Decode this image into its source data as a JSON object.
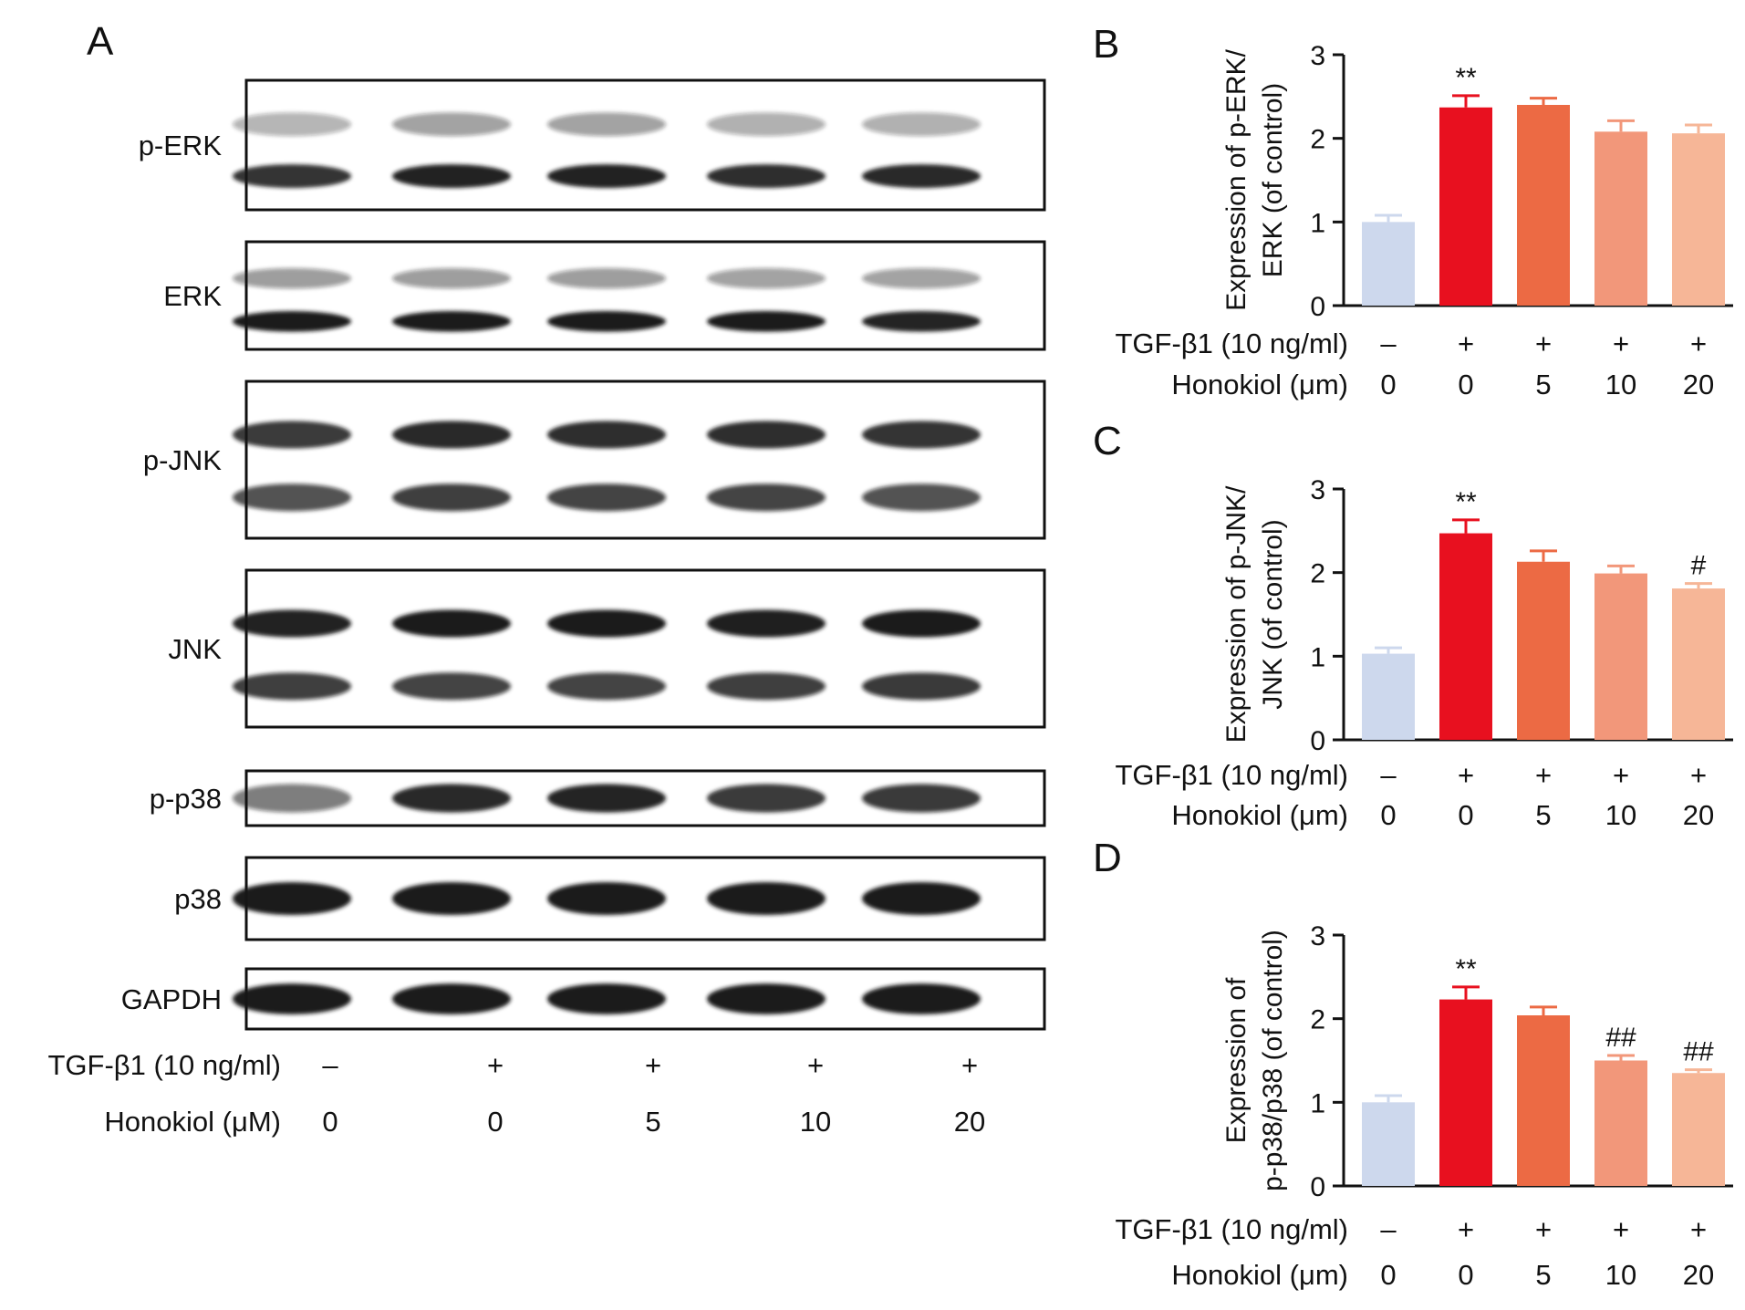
{
  "panel_letters": {
    "a": "A",
    "b": "B",
    "c": "C",
    "d": "D"
  },
  "blots": [
    {
      "label": "p-ERK",
      "rows": [
        {
          "intensity": [
            0.32,
            0.4,
            0.4,
            0.34,
            0.34
          ]
        },
        {
          "intensity": [
            0.88,
            0.95,
            0.95,
            0.9,
            0.92
          ]
        }
      ]
    },
    {
      "label": "ERK",
      "rows": [
        {
          "intensity": [
            0.42,
            0.42,
            0.42,
            0.4,
            0.4
          ]
        },
        {
          "intensity": [
            0.98,
            0.98,
            0.98,
            0.98,
            0.94
          ]
        }
      ]
    },
    {
      "label": "p-JNK",
      "rows": [
        {
          "intensity": [
            0.85,
            0.92,
            0.9,
            0.9,
            0.88
          ]
        },
        {
          "intensity": [
            0.72,
            0.8,
            0.78,
            0.78,
            0.72
          ]
        }
      ]
    },
    {
      "label": "JNK",
      "rows": [
        {
          "intensity": [
            0.95,
            0.98,
            0.98,
            0.96,
            0.98
          ]
        },
        {
          "intensity": [
            0.8,
            0.78,
            0.78,
            0.8,
            0.82
          ]
        }
      ]
    },
    {
      "label": "p-p38",
      "rows": [
        {
          "intensity": [
            0.55,
            0.92,
            0.94,
            0.85,
            0.82
          ]
        }
      ]
    },
    {
      "label": "p38",
      "rows": [
        {
          "intensity": [
            0.98,
            0.98,
            0.98,
            0.98,
            0.98
          ]
        }
      ]
    },
    {
      "label": "GAPDH",
      "rows": [
        {
          "intensity": [
            0.98,
            0.98,
            0.98,
            0.98,
            0.98
          ]
        }
      ]
    }
  ],
  "blot_conditions": {
    "tgf_label": "TGF-β1 (10 ng/ml)",
    "tgf_values": [
      "–",
      "+",
      "+",
      "+",
      "+"
    ],
    "honokiol_label": "Honokiol (μM)",
    "honokiol_values": [
      "0",
      "0",
      "5",
      "10",
      "20"
    ]
  },
  "colors": {
    "bars": [
      "#cdd8ed",
      "#e8101f",
      "#ec6a44",
      "#f2977a",
      "#f6b697"
    ],
    "band": "#141414"
  },
  "chart_data": [
    {
      "type": "bar",
      "panel": "B",
      "ylabel_lines": [
        "Expression of p-ERK/",
        "ERK (of control)"
      ],
      "ylim": [
        0,
        3
      ],
      "yticks": [
        "0",
        "1",
        "2",
        "3"
      ],
      "values": [
        1.0,
        2.37,
        2.4,
        2.08,
        2.06
      ],
      "errors": [
        0.08,
        0.14,
        0.08,
        0.13,
        0.1
      ],
      "annotations": [
        "",
        "**",
        "",
        "",
        ""
      ],
      "tgf_label": "TGF-β1 (10 ng/ml)",
      "tgf_values": [
        "–",
        "+",
        "+",
        "+",
        "+"
      ],
      "honokiol_label": "Honokiol (μm)",
      "honokiol_values": [
        "0",
        "0",
        "5",
        "10",
        "20"
      ]
    },
    {
      "type": "bar",
      "panel": "C",
      "ylabel_lines": [
        "Expression of p-JNK/",
        "JNK (of control)"
      ],
      "ylim": [
        0,
        3
      ],
      "yticks": [
        "0",
        "1",
        "2",
        "3"
      ],
      "values": [
        1.03,
        2.47,
        2.13,
        1.99,
        1.81
      ],
      "errors": [
        0.07,
        0.16,
        0.13,
        0.09,
        0.06
      ],
      "annotations": [
        "",
        "**",
        "",
        "",
        "#"
      ],
      "tgf_label": "TGF-β1 (10 ng/ml)",
      "tgf_values": [
        "–",
        "+",
        "+",
        "+",
        "+"
      ],
      "honokiol_label": "Honokiol (μm)",
      "honokiol_values": [
        "0",
        "0",
        "5",
        "10",
        "20"
      ]
    },
    {
      "type": "bar",
      "panel": "D",
      "ylabel_lines": [
        "Expression of",
        "p-p38/p38 (of control)"
      ],
      "ylim": [
        0,
        3
      ],
      "yticks": [
        "0",
        "1",
        "2",
        "3"
      ],
      "values": [
        1.0,
        2.23,
        2.04,
        1.5,
        1.35
      ],
      "errors": [
        0.08,
        0.15,
        0.1,
        0.06,
        0.04
      ],
      "annotations": [
        "",
        "**",
        "",
        "##",
        "##"
      ],
      "tgf_label": "TGF-β1 (10 ng/ml)",
      "tgf_values": [
        "–",
        "+",
        "+",
        "+",
        "+"
      ],
      "honokiol_label": "Honokiol (μm)",
      "honokiol_values": [
        "0",
        "0",
        "5",
        "10",
        "20"
      ]
    }
  ]
}
